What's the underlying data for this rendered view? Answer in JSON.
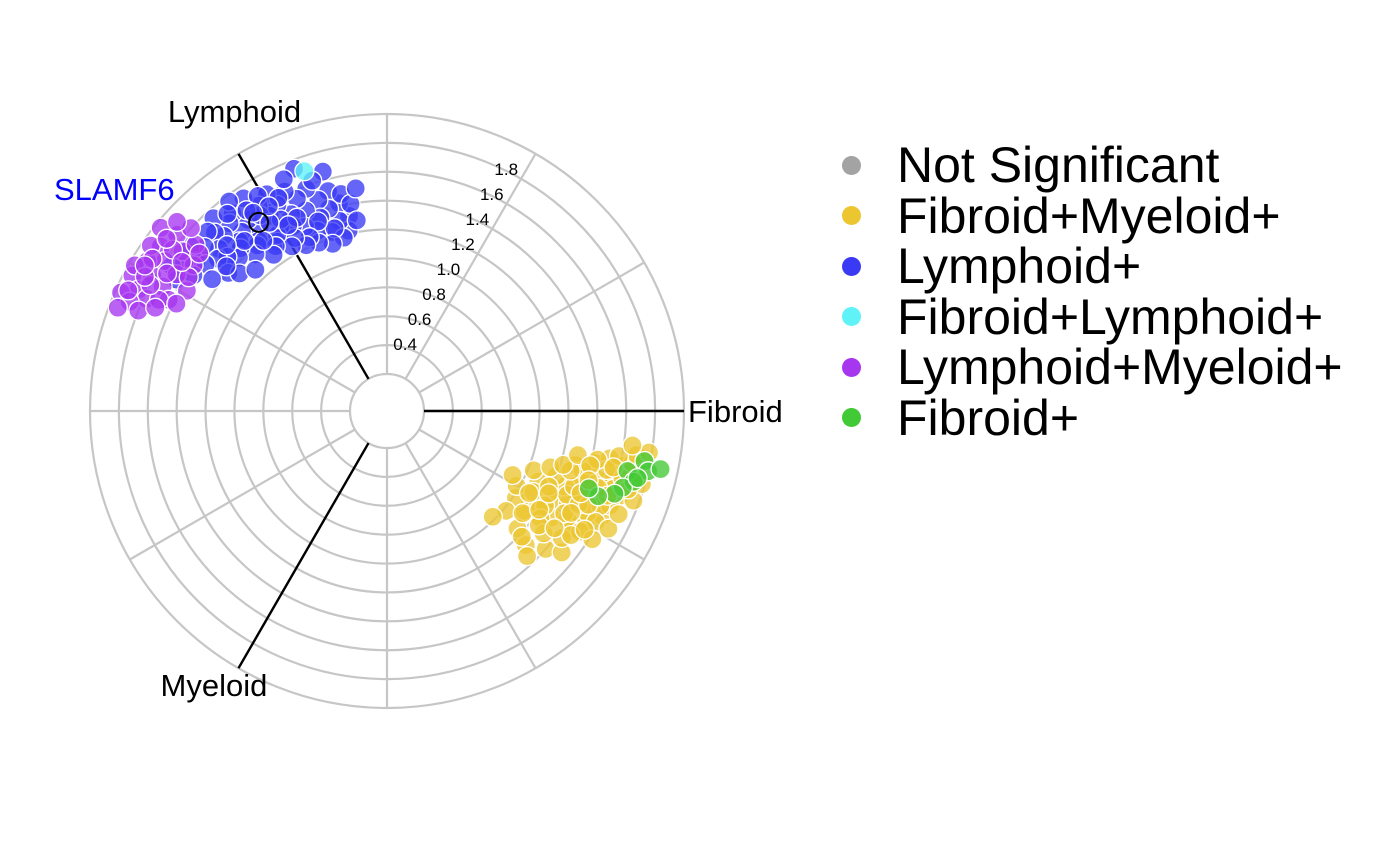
{
  "chart_data": {
    "type": "scatter",
    "subtype": "polar",
    "title": "",
    "axes": [
      "Fibroid",
      "Lymphoid",
      "Myeloid"
    ],
    "axis_angles_deg": [
      0,
      120,
      240
    ],
    "radial_ticks": [
      0.4,
      0.6,
      0.8,
      1.0,
      1.2,
      1.4,
      1.6,
      1.8
    ],
    "radial_tick_labels": [
      "0.4",
      "0.6",
      "0.8",
      "1.0",
      "1.2",
      "1.4",
      "1.6",
      "1.8"
    ],
    "radial_range": [
      0.2,
      2.0
    ],
    "grid": true,
    "legend_position": "right",
    "highlight": {
      "label": "SLAMF6",
      "color": "#0000ff",
      "angle": 120,
      "r": 1.5
    },
    "series": [
      {
        "name": "Not Significant",
        "color": "#a3a3a3",
        "points": []
      },
      {
        "name": "Fibroid+Myeloid+",
        "color": "#ecc631",
        "points": [
          [
            -36,
            1.12
          ],
          [
            -34,
            1.02
          ],
          [
            -33,
            1.3
          ],
          [
            -32,
            1.18
          ],
          [
            -31,
            1.4
          ],
          [
            -30,
            0.98
          ],
          [
            -29,
            1.52
          ],
          [
            -28,
            1.25
          ],
          [
            -27,
            1.35
          ],
          [
            -26,
            1.6
          ],
          [
            -25,
            1.1
          ],
          [
            -24,
            1.45
          ],
          [
            -23,
            1.28
          ],
          [
            -22,
            1.55
          ],
          [
            -21,
            1.2
          ],
          [
            -20,
            1.66
          ],
          [
            -19,
            1.38
          ],
          [
            -18,
            1.48
          ],
          [
            -17,
            1.58
          ],
          [
            -16,
            1.3
          ],
          [
            -15,
            1.7
          ],
          [
            -14,
            1.42
          ],
          [
            -13,
            1.62
          ],
          [
            -12,
            1.52
          ],
          [
            -33,
            1.46
          ],
          [
            -31,
            1.22
          ],
          [
            -29,
            1.1
          ],
          [
            -27,
            1.5
          ],
          [
            -25,
            1.32
          ],
          [
            -23,
            1.62
          ],
          [
            -21,
            1.44
          ],
          [
            -19,
            1.6
          ],
          [
            -17,
            1.36
          ],
          [
            -15,
            1.52
          ],
          [
            -13,
            1.44
          ],
          [
            -35,
            1.24
          ],
          [
            -30,
            1.36
          ],
          [
            -26,
            1.42
          ],
          [
            -22,
            1.34
          ],
          [
            -18,
            1.28
          ],
          [
            -24,
            1.56
          ],
          [
            -20,
            1.5
          ],
          [
            -16,
            1.64
          ],
          [
            -28,
            1.58
          ],
          [
            -32,
            1.52
          ],
          [
            -14,
            1.74
          ],
          [
            -12,
            1.68
          ],
          [
            -42,
            1.16
          ],
          [
            -40,
            1.02
          ],
          [
            -44,
            1.28
          ],
          [
            -41,
            1.4
          ],
          [
            -38,
            1.32
          ],
          [
            -45,
            0.98
          ],
          [
            -43,
            1.22
          ],
          [
            -39,
            1.5
          ],
          [
            -37,
            1.26
          ],
          [
            -46,
            1.34
          ],
          [
            -36,
            1.44
          ],
          [
            -34,
            1.48
          ],
          [
            -32,
            1.62
          ],
          [
            -28,
            1.68
          ],
          [
            -24,
            1.7
          ],
          [
            -20,
            1.76
          ],
          [
            -16,
            1.78
          ],
          [
            -27,
            0.92
          ],
          [
            -30,
            1.08
          ],
          [
            -25,
            1.18
          ],
          [
            -22,
            1.04
          ],
          [
            -19,
            1.14
          ],
          [
            -17,
            1.22
          ],
          [
            -10,
            1.7
          ],
          [
            -11,
            1.58
          ],
          [
            -9,
            1.78
          ],
          [
            -8,
            1.66
          ],
          [
            -13,
            1.3
          ],
          [
            -15,
            1.4
          ],
          [
            -35,
            1.36
          ],
          [
            -37,
            1.12
          ],
          [
            -33,
            1.2
          ],
          [
            -31,
            1.54
          ],
          [
            -29,
            1.4
          ],
          [
            -27,
            1.2
          ],
          [
            -25,
            1.48
          ],
          [
            -23,
            1.4
          ],
          [
            -21,
            1.58
          ],
          [
            -19,
            1.42
          ],
          [
            -18,
            1.7
          ],
          [
            -14,
            1.56
          ]
        ]
      },
      {
        "name": "Lymphoid+",
        "color": "#3a3af5",
        "points": [
          [
            101,
            1.32
          ],
          [
            102,
            1.22
          ],
          [
            103,
            1.42
          ],
          [
            104,
            1.3
          ],
          [
            105,
            1.52
          ],
          [
            106,
            1.4
          ],
          [
            107,
            1.24
          ],
          [
            108,
            1.48
          ],
          [
            109,
            1.36
          ],
          [
            110,
            1.58
          ],
          [
            111,
            1.28
          ],
          [
            112,
            1.44
          ],
          [
            113,
            1.54
          ],
          [
            114,
            1.34
          ],
          [
            115,
            1.62
          ],
          [
            116,
            1.46
          ],
          [
            117,
            1.38
          ],
          [
            118,
            1.56
          ],
          [
            119,
            1.66
          ],
          [
            120,
            1.42
          ],
          [
            121,
            1.52
          ],
          [
            122,
            1.62
          ],
          [
            123,
            1.34
          ],
          [
            124,
            1.72
          ],
          [
            125,
            1.48
          ],
          [
            126,
            1.58
          ],
          [
            127,
            1.42
          ],
          [
            128,
            1.68
          ],
          [
            129,
            1.54
          ],
          [
            130,
            1.64
          ],
          [
            131,
            1.5
          ],
          [
            132,
            1.74
          ],
          [
            133,
            1.6
          ],
          [
            134,
            1.66
          ],
          [
            135,
            1.7
          ],
          [
            136,
            1.56
          ],
          [
            138,
            1.64
          ],
          [
            140,
            1.72
          ],
          [
            142,
            1.62
          ],
          [
            144,
            1.68
          ],
          [
            146,
            1.74
          ],
          [
            148,
            1.66
          ],
          [
            104,
            1.18
          ],
          [
            106,
            1.26
          ],
          [
            108,
            1.16
          ],
          [
            110,
            1.34
          ],
          [
            112,
            1.2
          ],
          [
            114,
            1.26
          ],
          [
            116,
            1.22
          ],
          [
            118,
            1.3
          ],
          [
            120,
            1.26
          ],
          [
            122,
            1.38
          ],
          [
            124,
            1.32
          ],
          [
            126,
            1.28
          ],
          [
            128,
            1.4
          ],
          [
            130,
            1.36
          ],
          [
            132,
            1.46
          ],
          [
            134,
            1.42
          ],
          [
            136,
            1.48
          ],
          [
            138,
            1.52
          ],
          [
            102,
            1.48
          ],
          [
            105,
            1.66
          ],
          [
            108,
            1.62
          ],
          [
            111,
            1.74
          ],
          [
            114,
            1.7
          ],
          [
            117,
            1.6
          ],
          [
            119,
            1.46
          ],
          [
            121,
            1.68
          ],
          [
            123,
            1.56
          ],
          [
            125,
            1.64
          ],
          [
            127,
            1.76
          ],
          [
            129,
            1.7
          ],
          [
            139,
            1.4
          ],
          [
            141,
            1.56
          ],
          [
            143,
            1.46
          ],
          [
            145,
            1.58
          ],
          [
            137,
            1.34
          ],
          [
            133,
            1.28
          ],
          [
            100,
            1.4
          ],
          [
            99,
            1.28
          ],
          [
            98,
            1.5
          ],
          [
            115,
            1.42
          ],
          [
            118,
            1.4
          ],
          [
            122,
            1.48
          ],
          [
            126,
            1.4
          ],
          [
            130,
            1.48
          ],
          [
            134,
            1.54
          ],
          [
            138,
            1.44
          ],
          [
            120,
            1.58
          ],
          [
            124,
            1.6
          ]
        ]
      },
      {
        "name": "Fibroid+Lymphoid+",
        "color": "#5ff2f7",
        "points": [
          [
            109,
            1.7
          ]
        ]
      },
      {
        "name": "Lymphoid+Myeloid+",
        "color": "#a736ef",
        "points": [
          [
            140,
            1.84
          ],
          [
            142,
            1.74
          ],
          [
            144,
            1.88
          ],
          [
            146,
            1.8
          ],
          [
            148,
            1.9
          ],
          [
            150,
            1.82
          ],
          [
            152,
            1.94
          ],
          [
            154,
            1.86
          ],
          [
            156,
            1.96
          ],
          [
            143,
            1.62
          ],
          [
            147,
            1.68
          ],
          [
            151,
            1.72
          ],
          [
            155,
            1.78
          ],
          [
            149,
            1.56
          ],
          [
            153,
            1.64
          ],
          [
            145,
            1.94
          ],
          [
            157,
            1.88
          ],
          [
            139,
            1.7
          ],
          [
            141,
            1.96
          ],
          [
            150,
            1.96
          ],
          [
            146,
            1.6
          ],
          [
            154,
            1.7
          ],
          [
            158,
            1.8
          ],
          [
            137,
            1.8
          ],
          [
            143,
            1.8
          ],
          [
            148,
            1.74
          ],
          [
            152,
            1.8
          ],
          [
            156,
            1.7
          ],
          [
            140,
            1.64
          ],
          [
            147,
            1.88
          ],
          [
            151,
            1.86
          ],
          [
            155,
            1.92
          ],
          [
            138,
            1.9
          ],
          [
            144,
            1.7
          ],
          [
            149,
            1.9
          ],
          [
            153,
            1.58
          ],
          [
            159,
            1.94
          ],
          [
            142,
            1.88
          ]
        ]
      },
      {
        "name": "Fibroid+",
        "color": "#42c936",
        "points": [
          [
            -11,
            1.76
          ],
          [
            -13,
            1.8
          ],
          [
            -14,
            1.66
          ],
          [
            -16,
            1.72
          ],
          [
            -18,
            1.66
          ],
          [
            -20,
            1.62
          ],
          [
            -22,
            1.52
          ],
          [
            -12,
            1.88
          ],
          [
            -15,
            1.74
          ],
          [
            -21,
            1.44
          ]
        ]
      }
    ]
  }
}
